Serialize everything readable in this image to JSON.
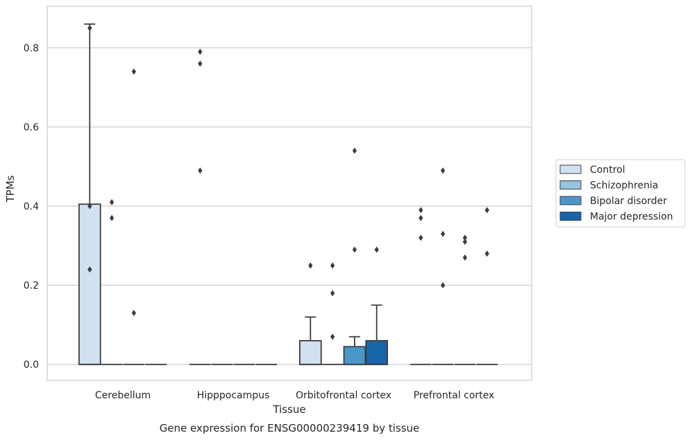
{
  "chart_data": {
    "type": "box",
    "caption": "Gene expression for ENSG00000239419 by tissue",
    "xlabel": "Tissue",
    "ylabel": "TPMs",
    "ylim": [
      -0.04,
      0.905
    ],
    "yticks": [
      0.0,
      0.2,
      0.4,
      0.6,
      0.8
    ],
    "ytick_labels": [
      "0.0",
      "0.2",
      "0.4",
      "0.6",
      "0.8"
    ],
    "grid": "horizontal",
    "legend_placement": "right",
    "categories": [
      "Cerebellum",
      "Hipppocampus",
      "Orbitofrontal cortex",
      "Prefrontal cortex"
    ],
    "series": [
      {
        "name": "Control",
        "color": "#d0e1f2"
      },
      {
        "name": "Schizophrenia",
        "color": "#94c4df"
      },
      {
        "name": "Bipolar disorder",
        "color": "#4a98c9"
      },
      {
        "name": "Major depression",
        "color": "#1764ab"
      }
    ],
    "boxes": [
      {
        "category": 0,
        "series": 0,
        "q1": 0,
        "median": 0,
        "q3": 0.405,
        "whisker_low": 0,
        "whisker_high": 0.86,
        "outliers": [
          0.85,
          0.4,
          0.24
        ]
      },
      {
        "category": 0,
        "series": 1,
        "q1": 0,
        "median": 0,
        "q3": 0,
        "whisker_low": 0,
        "whisker_high": 0,
        "outliers": [
          0.41,
          0.37
        ]
      },
      {
        "category": 0,
        "series": 2,
        "q1": 0,
        "median": 0,
        "q3": 0,
        "whisker_low": 0,
        "whisker_high": 0,
        "outliers": [
          0.74,
          0.13
        ]
      },
      {
        "category": 0,
        "series": 3,
        "q1": 0,
        "median": 0,
        "q3": 0,
        "whisker_low": 0,
        "whisker_high": 0,
        "outliers": []
      },
      {
        "category": 1,
        "series": 0,
        "q1": 0,
        "median": 0,
        "q3": 0,
        "whisker_low": 0,
        "whisker_high": 0,
        "outliers": [
          0.79,
          0.76,
          0.49
        ]
      },
      {
        "category": 1,
        "series": 1,
        "q1": 0,
        "median": 0,
        "q3": 0,
        "whisker_low": 0,
        "whisker_high": 0,
        "outliers": []
      },
      {
        "category": 1,
        "series": 2,
        "q1": 0,
        "median": 0,
        "q3": 0,
        "whisker_low": 0,
        "whisker_high": 0,
        "outliers": []
      },
      {
        "category": 1,
        "series": 3,
        "q1": 0,
        "median": 0,
        "q3": 0,
        "whisker_low": 0,
        "whisker_high": 0,
        "outliers": []
      },
      {
        "category": 2,
        "series": 0,
        "q1": 0,
        "median": 0,
        "q3": 0.06,
        "whisker_low": 0,
        "whisker_high": 0.12,
        "outliers": [
          0.25
        ]
      },
      {
        "category": 2,
        "series": 1,
        "q1": 0,
        "median": 0,
        "q3": 0,
        "whisker_low": 0,
        "whisker_high": 0,
        "outliers": [
          0.25,
          0.18,
          0.07
        ]
      },
      {
        "category": 2,
        "series": 2,
        "q1": 0,
        "median": 0,
        "q3": 0.045,
        "whisker_low": 0,
        "whisker_high": 0.07,
        "outliers": [
          0.54,
          0.29
        ]
      },
      {
        "category": 2,
        "series": 3,
        "q1": 0,
        "median": 0,
        "q3": 0.06,
        "whisker_low": 0,
        "whisker_high": 0.15,
        "outliers": [
          0.29
        ]
      },
      {
        "category": 3,
        "series": 0,
        "q1": 0,
        "median": 0,
        "q3": 0,
        "whisker_low": 0,
        "whisker_high": 0,
        "outliers": [
          0.39,
          0.37,
          0.32
        ]
      },
      {
        "category": 3,
        "series": 1,
        "q1": 0,
        "median": 0,
        "q3": 0,
        "whisker_low": 0,
        "whisker_high": 0,
        "outliers": [
          0.49,
          0.33,
          0.2
        ]
      },
      {
        "category": 3,
        "series": 2,
        "q1": 0,
        "median": 0,
        "q3": 0,
        "whisker_low": 0,
        "whisker_high": 0,
        "outliers": [
          0.32,
          0.31,
          0.27
        ]
      },
      {
        "category": 3,
        "series": 3,
        "q1": 0,
        "median": 0,
        "q3": 0,
        "whisker_low": 0,
        "whisker_high": 0,
        "outliers": [
          0.39,
          0.28
        ]
      }
    ]
  },
  "colors": {
    "edge": "#3d3d3d",
    "grid": "#cccccc",
    "spine": "#cccccc"
  }
}
